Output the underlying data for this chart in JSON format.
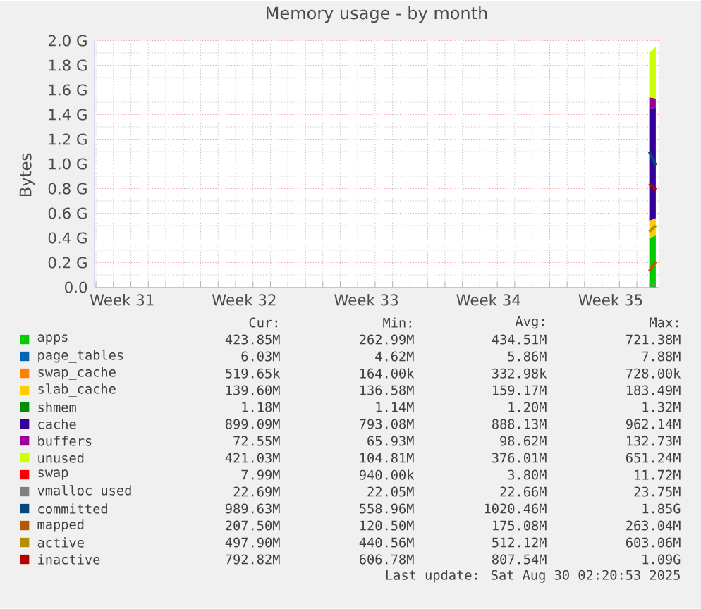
{
  "chart_data": {
    "type": "area",
    "stacked": true,
    "title": "Memory usage - by month",
    "ylabel": "Bytes",
    "x": [
      "2025-08-30T17:00",
      "2025-08-31T02:00"
    ],
    "xlim": [
      "2025-07-29T22:00",
      "2025-08-31T06:00"
    ],
    "xticks": [
      {
        "value": "2025-07-31T12:00",
        "label": "Week 31"
      },
      {
        "value": "2025-08-04",
        "label": null
      },
      {
        "value": "2025-08-07T12:00",
        "label": "Week 32"
      },
      {
        "value": "2025-08-11",
        "label": null
      },
      {
        "value": "2025-08-14T12:00",
        "label": "Week 33"
      },
      {
        "value": "2025-08-18",
        "label": null
      },
      {
        "value": "2025-08-21T12:00",
        "label": "Week 34"
      },
      {
        "value": "2025-08-25",
        "label": null
      },
      {
        "value": "2025-08-28T12:00",
        "label": "Week 35"
      }
    ],
    "ylim": [
      0,
      2
    ],
    "yticks": [
      {
        "value": 0,
        "label": "0.0"
      },
      {
        "value": 0.2,
        "label": "0.2 G"
      },
      {
        "value": 0.4,
        "label": "0.4 G"
      },
      {
        "value": 0.6,
        "label": "0.6 G"
      },
      {
        "value": 0.8,
        "label": "0.8 G"
      },
      {
        "value": 1.0,
        "label": "1.0 G"
      },
      {
        "value": 1.2,
        "label": "1.2 G"
      },
      {
        "value": 1.4,
        "label": "1.4 G"
      },
      {
        "value": 1.6,
        "label": "1.6 G"
      },
      {
        "value": 1.8,
        "label": "1.8 G"
      },
      {
        "value": 2.0,
        "label": "2.0 G"
      }
    ],
    "grid": true,
    "legend": "bottom",
    "series": [
      {
        "name": "apps",
        "color": "#00cc00",
        "values": [
          0.4,
          0.42
        ]
      },
      {
        "name": "page_tables",
        "color": "#0066b3",
        "values": [
          null,
          null
        ]
      },
      {
        "name": "swap_cache",
        "color": "#ff8000",
        "values": [
          null,
          null
        ]
      },
      {
        "name": "slab_cache",
        "color": "#ffcc00",
        "values": [
          0.14,
          0.14
        ]
      },
      {
        "name": "shmem",
        "color": "#008f00",
        "values": [
          null,
          null
        ]
      },
      {
        "name": "cache",
        "color": "#330099",
        "values": [
          0.9,
          0.9
        ]
      },
      {
        "name": "buffers",
        "color": "#990099",
        "values": [
          0.1,
          0.07
        ]
      },
      {
        "name": "unused",
        "color": "#ccff00",
        "values": [
          0.36,
          0.42
        ]
      },
      {
        "name": "swap",
        "color": "#ff0000",
        "values": [
          null,
          null
        ]
      },
      {
        "name": "vmalloc_used",
        "color": "#808080",
        "type": "line",
        "values": [
          0.02,
          0.02
        ]
      },
      {
        "name": "committed",
        "color": "#00487d",
        "type": "line",
        "values": [
          1.1,
          0.99
        ]
      },
      {
        "name": "mapped",
        "color": "#b35a00",
        "type": "line",
        "values": [
          0.13,
          0.21
        ]
      },
      {
        "name": "active",
        "color": "#b38f00",
        "type": "line",
        "values": [
          0.45,
          0.5
        ]
      },
      {
        "name": "inactive",
        "color": "#b30000",
        "type": "line",
        "values": [
          0.84,
          0.79
        ]
      }
    ],
    "annotations": [
      "Cur:",
      "Min:",
      "Avg:",
      "Max:",
      "423.85M",
      "262.99M",
      "434.51M",
      "721.38M",
      "6.03M",
      "4.62M",
      "5.86M",
      "7.88M",
      "519.65k",
      "164.00k",
      "332.98k",
      "728.00k",
      "139.60M",
      "136.58M",
      "159.17M",
      "183.49M",
      "1.18M",
      "1.14M",
      "1.20M",
      "1.32M",
      "899.09M",
      "793.08M",
      "888.13M",
      "962.14M",
      "72.55M",
      "65.93M",
      "98.62M",
      "132.73M",
      "421.03M",
      "104.81M",
      "376.01M",
      "651.24M",
      "7.99M",
      "940.00k",
      "3.80M",
      "11.72M",
      "22.69M",
      "22.05M",
      "22.66M",
      "23.75M",
      "989.63M",
      "558.96M",
      "1020.46M",
      "1.85G",
      "207.50M",
      "120.50M",
      "175.08M",
      "263.04M",
      "497.90M",
      "440.56M",
      "512.12M",
      "603.06M",
      "792.82M",
      "606.78M",
      "807.54M",
      "1.09G",
      "Last update: Sat Aug 30 02:20:53 2025"
    ]
  }
}
